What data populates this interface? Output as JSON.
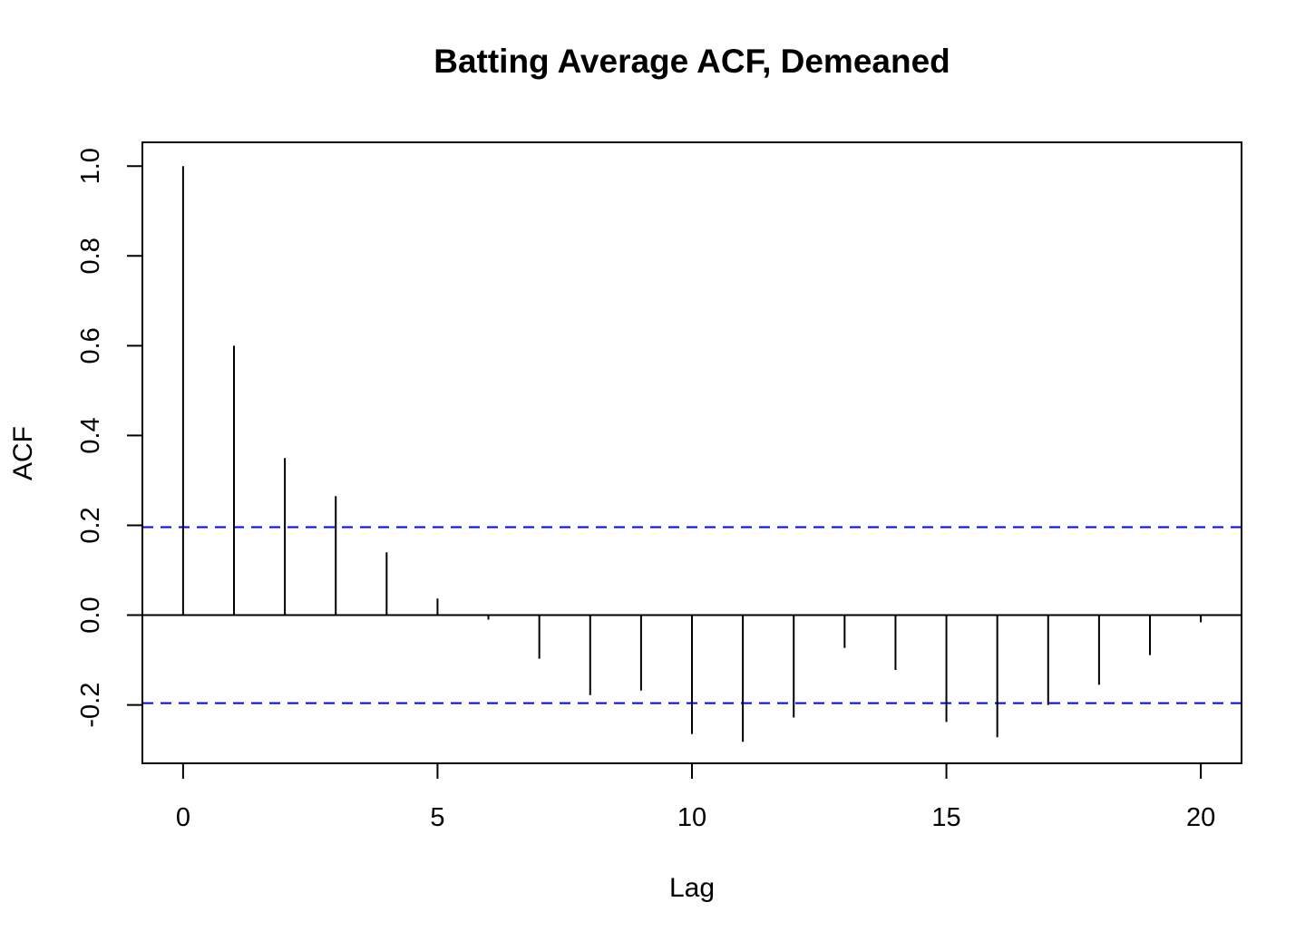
{
  "chart_data": {
    "type": "bar",
    "title": "Batting Average ACF, Demeaned",
    "xlabel": "Lag",
    "ylabel": "ACF",
    "x": [
      0,
      1,
      2,
      3,
      4,
      5,
      6,
      7,
      8,
      9,
      10,
      11,
      12,
      13,
      14,
      15,
      16,
      17,
      18,
      19,
      20
    ],
    "values": [
      1.0,
      0.6,
      0.35,
      0.265,
      0.14,
      0.037,
      -0.01,
      -0.097,
      -0.178,
      -0.168,
      -0.265,
      -0.282,
      -0.228,
      -0.073,
      -0.122,
      -0.238,
      -0.272,
      -0.2,
      -0.155,
      -0.089,
      -0.016
    ],
    "confidence_band": [
      -0.196,
      0.196
    ],
    "xlim": [
      -0.8,
      20.8
    ],
    "ylim": [
      -0.33,
      1.053
    ],
    "x_ticks": [
      "0",
      "5",
      "10",
      "15",
      "20"
    ],
    "y_ticks": [
      "-0.2",
      "0.0",
      "0.2",
      "0.4",
      "0.6",
      "0.8",
      "1.0"
    ],
    "colors": {
      "bars": "#000000",
      "band": "#0000ff",
      "zero_line": "#000000"
    }
  }
}
